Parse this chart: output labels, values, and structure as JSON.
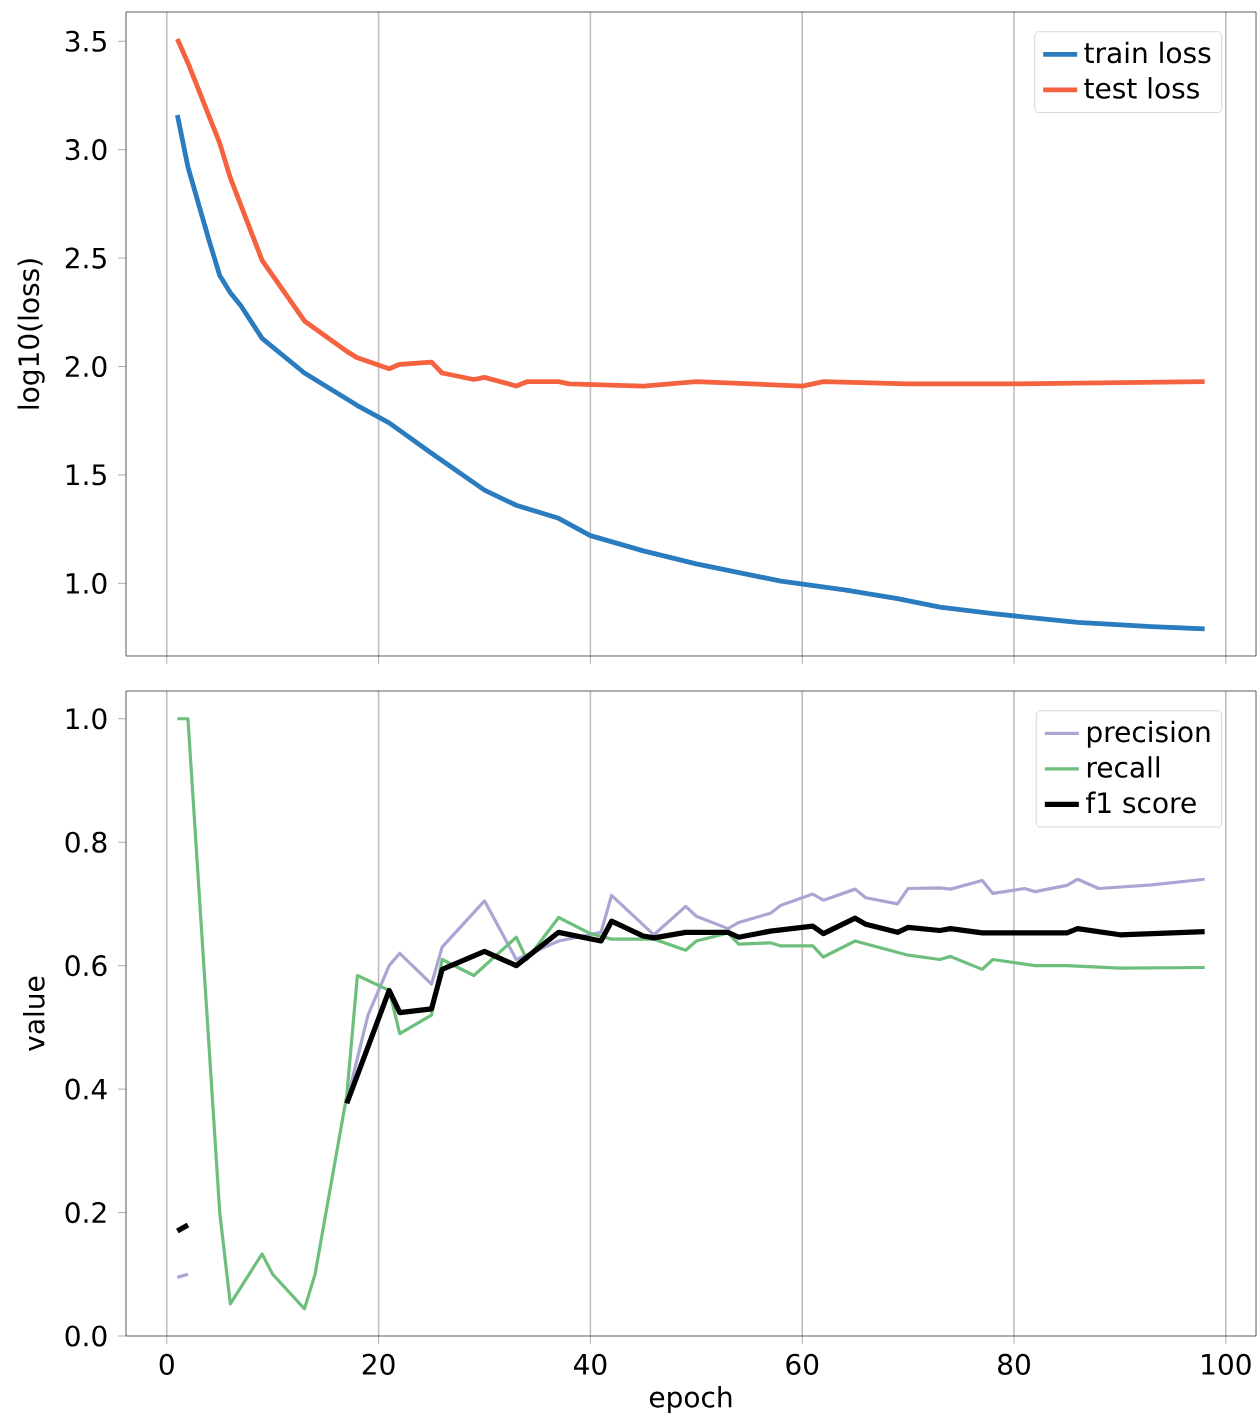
{
  "chart_data": [
    {
      "type": "line",
      "ylabel": "log10(loss)",
      "xlim": [
        -3.85,
        102.85
      ],
      "ylim": [
        0.665,
        3.635
      ],
      "xticks": [
        0,
        20,
        40,
        60,
        80,
        100
      ],
      "yticks": [
        {
          "value": 1.0,
          "label": "1.0"
        },
        1.5,
        {
          "value": 2.0,
          "label": "2.0"
        },
        2.5,
        {
          "value": 3.0,
          "label": "3.0"
        },
        3.5
      ],
      "grid": "x",
      "legend": "top right",
      "tick_labels": "y",
      "series": [
        {
          "name": "train loss",
          "color": "#2b7bbf",
          "x": [
            1,
            2,
            3,
            4,
            5,
            6,
            7,
            9,
            13,
            18,
            21,
            25,
            30,
            33,
            37,
            40,
            45,
            50,
            54,
            58,
            64,
            69,
            73,
            78,
            86,
            93,
            98
          ],
          "values": [
            3.16,
            2.92,
            2.75,
            2.58,
            2.42,
            2.34,
            2.28,
            2.13,
            1.97,
            1.82,
            1.74,
            1.6,
            1.43,
            1.36,
            1.3,
            1.22,
            1.15,
            1.09,
            1.05,
            1.01,
            0.97,
            0.93,
            0.89,
            0.86,
            0.82,
            0.8,
            0.79
          ]
        },
        {
          "name": "test loss",
          "color": "#f4623f",
          "x": [
            1,
            2,
            5,
            6,
            9,
            13,
            17,
            18,
            21,
            22,
            25,
            26,
            29,
            30,
            33,
            34,
            37,
            38,
            45,
            50,
            60,
            62,
            70,
            80,
            98
          ],
          "values": [
            3.51,
            3.4,
            3.03,
            2.87,
            2.49,
            2.21,
            2.07,
            2.04,
            1.99,
            2.01,
            2.02,
            1.97,
            1.94,
            1.95,
            1.91,
            1.93,
            1.93,
            1.92,
            1.91,
            1.93,
            1.91,
            1.93,
            1.92,
            1.92,
            1.93
          ]
        }
      ]
    },
    {
      "type": "line",
      "xlabel": "epoch",
      "ylabel": "value",
      "xlim": [
        -3.85,
        102.85
      ],
      "ylim": [
        0,
        1.045
      ],
      "xticks": [
        0,
        20,
        40,
        60,
        80,
        100
      ],
      "yticks": [
        {
          "value": 0,
          "label": "0.0"
        },
        0.2,
        0.4,
        0.6,
        0.8,
        {
          "value": 1.0,
          "label": "1.0"
        }
      ],
      "grid": "x",
      "legend": "top right",
      "series": [
        {
          "name": "precision",
          "color": "#aaa6d4",
          "x": [
            1,
            2,
            3,
            17,
            18,
            19,
            21,
            22,
            25,
            26,
            30,
            33,
            37,
            41,
            42,
            46,
            49,
            50,
            53,
            54,
            57,
            58,
            61,
            62,
            65,
            66,
            69,
            70,
            73,
            74,
            77,
            78,
            81,
            82,
            85,
            86,
            88,
            93,
            98
          ],
          "values": [
            0.095,
            0.1,
            null,
            0.38,
            0.45,
            0.52,
            0.6,
            0.62,
            0.57,
            0.63,
            0.705,
            0.61,
            0.64,
            0.654,
            0.714,
            0.65,
            0.696,
            0.68,
            0.66,
            0.67,
            0.685,
            0.698,
            0.716,
            0.706,
            0.724,
            0.71,
            0.7,
            0.725,
            0.726,
            0.724,
            0.738,
            0.717,
            0.725,
            0.72,
            0.73,
            0.74,
            0.725,
            0.731,
            0.74
          ]
        },
        {
          "name": "recall",
          "color": "#6dbf7b",
          "x": [
            1,
            2,
            5,
            6,
            9,
            10,
            13,
            14,
            17,
            18,
            21,
            22,
            25,
            26,
            29,
            33,
            34,
            37,
            40,
            42,
            46,
            49,
            50,
            53,
            54,
            57,
            58,
            61,
            62,
            65,
            70,
            73,
            74,
            77,
            78,
            82,
            85,
            90,
            98
          ],
          "values": [
            1.0,
            1.0,
            0.2,
            0.052,
            0.133,
            0.1,
            0.044,
            0.1,
            0.39,
            0.584,
            0.56,
            0.49,
            0.52,
            0.61,
            0.584,
            0.646,
            0.61,
            0.678,
            0.652,
            0.643,
            0.643,
            0.625,
            0.64,
            0.653,
            0.635,
            0.637,
            0.632,
            0.632,
            0.614,
            0.64,
            0.617,
            0.61,
            0.615,
            0.594,
            0.61,
            0.6,
            0.6,
            0.596,
            0.597
          ]
        },
        {
          "name": "f1 score",
          "color": "#000000",
          "x": [
            1,
            2,
            3,
            17,
            21,
            22,
            25,
            26,
            30,
            33,
            37,
            41,
            42,
            45,
            46,
            49,
            53,
            54,
            57,
            61,
            62,
            65,
            66,
            69,
            70,
            73,
            74,
            77,
            85,
            86,
            90,
            98
          ],
          "values": [
            0.17,
            0.18,
            null,
            0.377,
            0.56,
            0.524,
            0.53,
            0.594,
            0.623,
            0.6,
            0.654,
            0.64,
            0.672,
            0.648,
            0.645,
            0.654,
            0.654,
            0.646,
            0.656,
            0.664,
            0.652,
            0.677,
            0.667,
            0.654,
            0.662,
            0.657,
            0.66,
            0.653,
            0.653,
            0.66,
            0.65,
            0.655
          ]
        }
      ]
    }
  ]
}
